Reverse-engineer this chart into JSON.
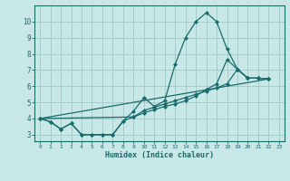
{
  "xlabel": "Humidex (Indice chaleur)",
  "bg_color": "#c8e8e8",
  "grid_color": "#a0c8c8",
  "line_color": "#1a6b6b",
  "xlim": [
    -0.5,
    23.5
  ],
  "ylim": [
    2.6,
    11.0
  ],
  "yticks": [
    3,
    4,
    5,
    6,
    7,
    8,
    9,
    10
  ],
  "xticks": [
    0,
    1,
    2,
    3,
    4,
    5,
    6,
    7,
    8,
    9,
    10,
    11,
    12,
    13,
    14,
    15,
    16,
    17,
    18,
    19,
    20,
    21,
    22,
    23
  ],
  "line1_x": [
    0,
    1,
    2,
    3,
    4,
    5,
    6,
    7,
    8,
    9,
    10,
    11,
    12,
    13,
    14,
    15,
    16,
    17,
    18,
    19,
    20,
    21,
    22
  ],
  "line1_y": [
    4.0,
    3.8,
    3.35,
    3.7,
    3.0,
    3.0,
    3.0,
    3.0,
    3.85,
    4.45,
    5.3,
    4.75,
    5.1,
    7.35,
    9.0,
    10.0,
    10.55,
    10.0,
    8.3,
    7.05,
    6.5,
    6.5,
    6.45
  ],
  "line2_x": [
    0,
    1,
    2,
    3,
    4,
    5,
    6,
    7,
    8,
    9,
    10,
    11,
    12,
    13,
    14,
    15,
    16,
    17,
    18,
    19,
    20,
    21,
    22
  ],
  "line2_y": [
    4.0,
    3.8,
    3.35,
    3.7,
    3.0,
    3.0,
    3.0,
    3.0,
    3.85,
    4.1,
    4.5,
    4.7,
    4.9,
    5.1,
    5.3,
    5.5,
    5.7,
    5.9,
    6.15,
    7.05,
    6.5,
    6.5,
    6.45
  ],
  "line3_x": [
    0,
    9,
    10,
    11,
    12,
    13,
    14,
    15,
    16,
    17,
    18,
    19,
    20,
    21,
    22
  ],
  "line3_y": [
    4.0,
    4.1,
    4.35,
    4.55,
    4.75,
    4.9,
    5.1,
    5.4,
    5.8,
    6.15,
    7.65,
    7.05,
    6.5,
    6.5,
    6.45
  ],
  "line4_x": [
    0,
    22
  ],
  "line4_y": [
    4.0,
    6.45
  ]
}
